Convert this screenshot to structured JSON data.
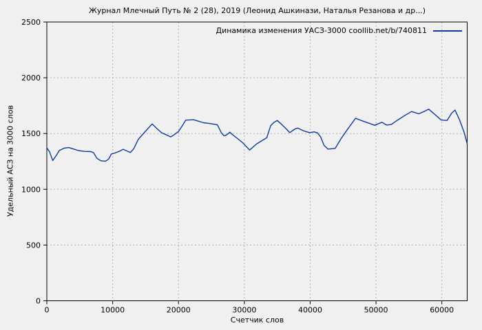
{
  "title": "Журнал Млечный Путь № 2 (28), 2019 (Леонид Ашкинази, Наталья Резанова и др...)",
  "legend": {
    "label": "Динамика изменения УАСЗ-3000 coollib.net/b/740811"
  },
  "axes": {
    "x_label": "Счетчик слов",
    "y_label": "Удельный АСЗ на 3000 слов"
  },
  "colors": {
    "background": "#f0f0f0",
    "line": "#0d3b97",
    "grid": "#b0b0b0",
    "axis": "#000000"
  },
  "chart_data": {
    "type": "line",
    "title": "Журнал Млечный Путь № 2 (28), 2019 (Леонид Ашкинази, Наталья Резанова и др...)",
    "xlabel": "Счетчик слов",
    "ylabel": "Удельный АСЗ на 3000 слов",
    "xlim": [
      0,
      63850
    ],
    "ylim": [
      0,
      2500
    ],
    "x_ticks": [
      0,
      10000,
      20000,
      30000,
      40000,
      50000,
      60000
    ],
    "y_ticks": [
      0,
      500,
      1000,
      1500,
      2000,
      2500
    ],
    "grid": true,
    "legend_position": "top-right",
    "series": [
      {
        "name": "Динамика изменения УАСЗ-3000 coollib.net/b/740811",
        "color": "#0d3b97",
        "points": [
          [
            0,
            1372
          ],
          [
            400,
            1338
          ],
          [
            900,
            1258
          ],
          [
            1400,
            1300
          ],
          [
            1900,
            1348
          ],
          [
            2600,
            1368
          ],
          [
            3300,
            1374
          ],
          [
            4000,
            1362
          ],
          [
            4800,
            1347
          ],
          [
            5700,
            1340
          ],
          [
            6700,
            1338
          ],
          [
            7100,
            1328
          ],
          [
            7600,
            1278
          ],
          [
            8200,
            1256
          ],
          [
            8900,
            1251
          ],
          [
            9400,
            1271
          ],
          [
            9800,
            1316
          ],
          [
            10400,
            1326
          ],
          [
            11100,
            1343
          ],
          [
            11600,
            1359
          ],
          [
            12200,
            1343
          ],
          [
            12700,
            1330
          ],
          [
            13200,
            1363
          ],
          [
            13900,
            1448
          ],
          [
            14800,
            1508
          ],
          [
            16000,
            1586
          ],
          [
            16700,
            1545
          ],
          [
            17400,
            1508
          ],
          [
            18200,
            1487
          ],
          [
            18800,
            1470
          ],
          [
            19300,
            1487
          ],
          [
            20000,
            1518
          ],
          [
            20600,
            1572
          ],
          [
            21100,
            1620
          ],
          [
            22300,
            1623
          ],
          [
            23000,
            1611
          ],
          [
            23800,
            1597
          ],
          [
            24700,
            1590
          ],
          [
            25900,
            1579
          ],
          [
            26500,
            1508
          ],
          [
            26900,
            1480
          ],
          [
            27300,
            1487
          ],
          [
            27800,
            1512
          ],
          [
            28200,
            1490
          ],
          [
            28900,
            1458
          ],
          [
            29700,
            1420
          ],
          [
            30800,
            1352
          ],
          [
            31900,
            1408
          ],
          [
            32800,
            1440
          ],
          [
            33400,
            1462
          ],
          [
            34000,
            1570
          ],
          [
            34500,
            1600
          ],
          [
            35000,
            1617
          ],
          [
            35700,
            1580
          ],
          [
            36300,
            1545
          ],
          [
            36900,
            1508
          ],
          [
            37700,
            1541
          ],
          [
            38100,
            1549
          ],
          [
            39000,
            1524
          ],
          [
            39900,
            1508
          ],
          [
            40600,
            1515
          ],
          [
            41100,
            1506
          ],
          [
            41600,
            1468
          ],
          [
            42100,
            1394
          ],
          [
            42700,
            1360
          ],
          [
            43800,
            1367
          ],
          [
            44700,
            1455
          ],
          [
            45700,
            1540
          ],
          [
            46900,
            1637
          ],
          [
            47600,
            1620
          ],
          [
            48800,
            1595
          ],
          [
            49800,
            1574
          ],
          [
            50900,
            1601
          ],
          [
            51600,
            1576
          ],
          [
            52300,
            1581
          ],
          [
            53300,
            1621
          ],
          [
            54400,
            1663
          ],
          [
            55400,
            1697
          ],
          [
            55900,
            1688
          ],
          [
            56500,
            1677
          ],
          [
            57500,
            1703
          ],
          [
            58000,
            1718
          ],
          [
            59100,
            1663
          ],
          [
            59900,
            1621
          ],
          [
            60800,
            1617
          ],
          [
            61500,
            1683
          ],
          [
            62000,
            1710
          ],
          [
            62700,
            1621
          ],
          [
            63400,
            1508
          ],
          [
            63850,
            1407
          ]
        ]
      }
    ]
  }
}
